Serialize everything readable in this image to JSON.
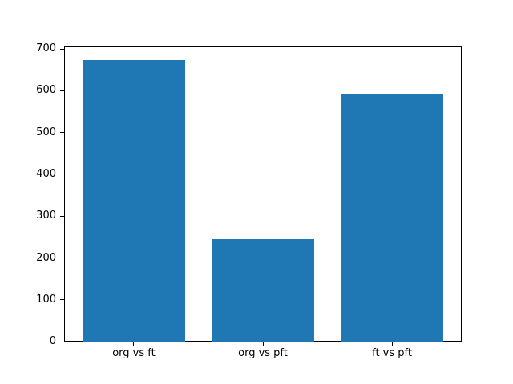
{
  "chart_data": {
    "type": "bar",
    "categories": [
      "org vs ft",
      "org vs pft",
      "ft vs pft"
    ],
    "values": [
      673,
      245,
      592
    ],
    "title": "",
    "xlabel": "",
    "ylabel": "",
    "ylim": [
      0,
      706.65
    ],
    "yticks": [
      0,
      100,
      200,
      300,
      400,
      500,
      600,
      700
    ],
    "bar_color": "#1f77b4",
    "spine_color": "#000000",
    "tick_label_color": "#000000",
    "bar_width_fraction": 0.8,
    "grid": false,
    "legend": null
  }
}
